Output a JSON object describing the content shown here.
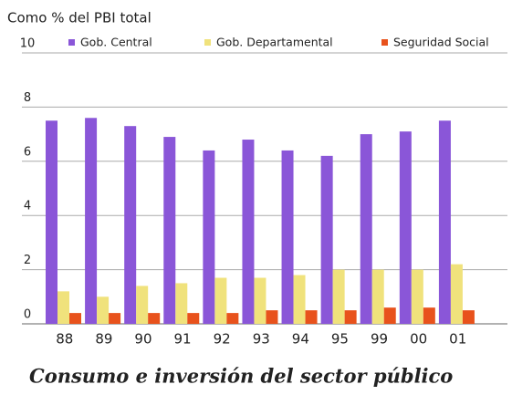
{
  "chart_data": {
    "type": "bar",
    "title": "Consumo e inversión del sector público",
    "y_label": "Como % del PBI total",
    "categories": [
      "88",
      "89",
      "90",
      "91",
      "92",
      "93",
      "94",
      "95",
      "99",
      "00",
      "01"
    ],
    "series": [
      {
        "name": "Gob. Central",
        "color": "#8a56d8",
        "values": [
          7.5,
          7.6,
          7.3,
          6.9,
          6.4,
          6.8,
          6.4,
          6.2,
          7.0,
          7.1,
          7.5
        ]
      },
      {
        "name": "Gob. Departamental",
        "color": "#f0e27c",
        "values": [
          1.2,
          1.0,
          1.4,
          1.5,
          1.7,
          1.7,
          1.8,
          2.0,
          2.0,
          2.0,
          2.2
        ]
      },
      {
        "name": "Seguridad Social",
        "color": "#e8521c",
        "values": [
          0.4,
          0.4,
          0.4,
          0.4,
          0.4,
          0.5,
          0.5,
          0.5,
          0.6,
          0.6,
          0.5
        ]
      }
    ],
    "ylim": [
      0,
      10
    ],
    "yticks": [
      0,
      2,
      4,
      6,
      8,
      10
    ],
    "grid": true,
    "legend": "top"
  }
}
